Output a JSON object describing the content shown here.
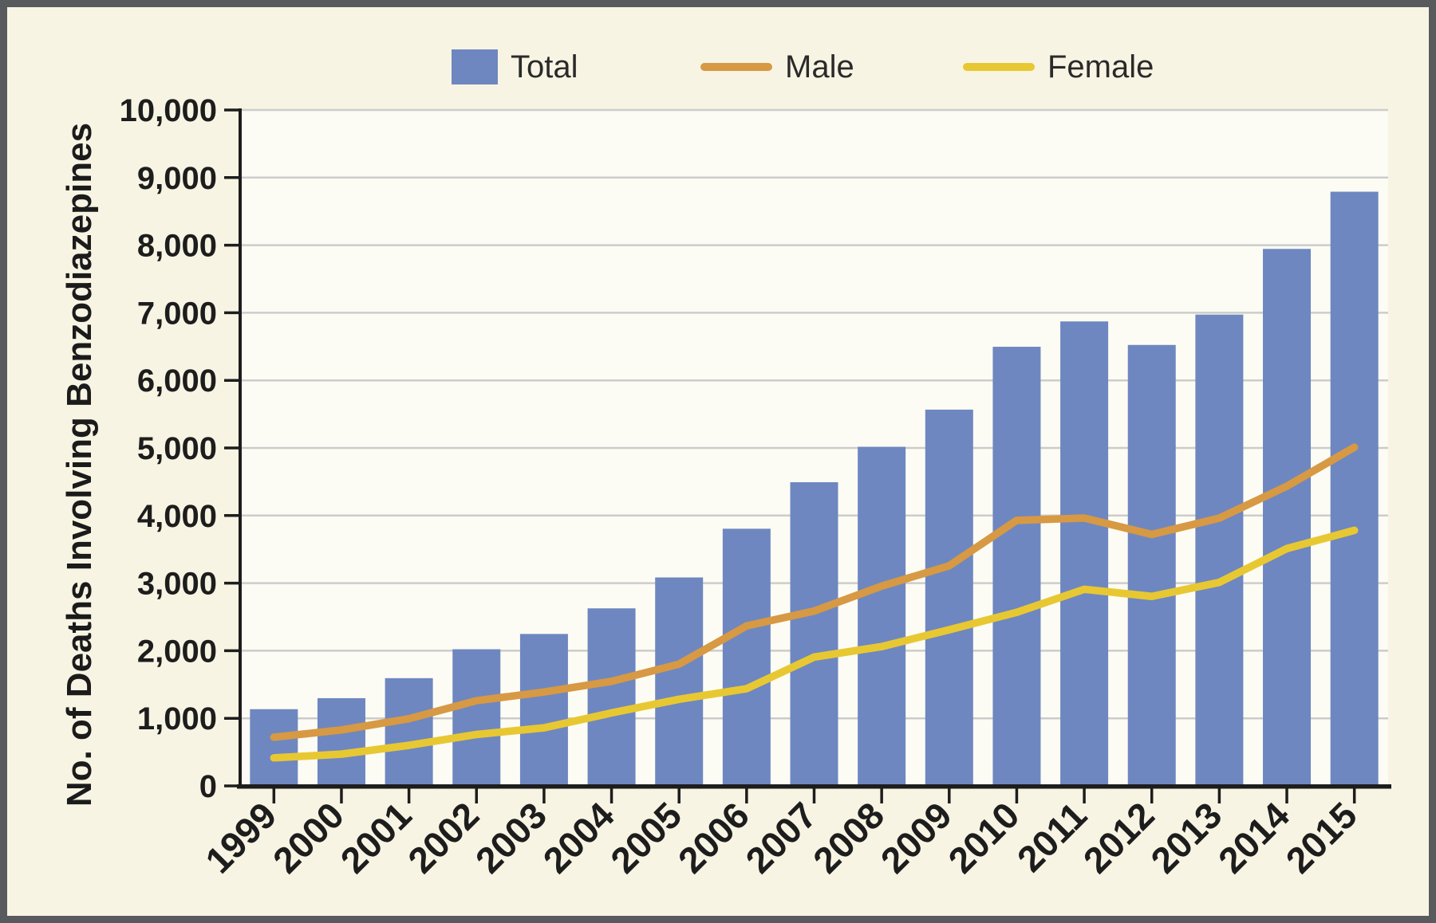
{
  "figure": {
    "background": "#f8f4e3",
    "plot_background": "#fcfcf4",
    "border_color": "#595a5e",
    "grid_color": "#cccccc",
    "axis_color": "#1d1d1d",
    "text_color": "#1d1d1d"
  },
  "legend": {
    "items": [
      {
        "label": "Total",
        "swatch": "square",
        "color": "#6e87c0"
      },
      {
        "label": "Male",
        "swatch": "line",
        "color": "#d79943"
      },
      {
        "label": "Female",
        "swatch": "line",
        "color": "#e8c832"
      }
    ]
  },
  "chart_data": {
    "type": "bar",
    "title": "",
    "xlabel": "",
    "ylabel": "No. of Deaths Involving Benzodiazepines",
    "ylim": [
      0,
      10000
    ],
    "ytick_step": 1000,
    "yticks": [
      "0",
      "1,000",
      "2,000",
      "3,000",
      "4,000",
      "5,000",
      "6,000",
      "7,000",
      "8,000",
      "9,000",
      "10,000"
    ],
    "grid": true,
    "legend_position": "top",
    "categories": [
      "1999",
      "2000",
      "2001",
      "2002",
      "2003",
      "2004",
      "2005",
      "2006",
      "2007",
      "2008",
      "2009",
      "2010",
      "2011",
      "2012",
      "2013",
      "2014",
      "2015"
    ],
    "series": [
      {
        "name": "Total",
        "type": "bar",
        "color": "#6e87c0",
        "values": [
          1135,
          1298,
          1594,
          2022,
          2248,
          2627,
          3084,
          3805,
          4493,
          5017,
          5567,
          6497,
          6872,
          6524,
          6973,
          7945,
          8791
        ]
      },
      {
        "name": "Male",
        "type": "line",
        "color": "#d79943",
        "values": [
          720,
          828,
          994,
          1261,
          1389,
          1547,
          1802,
          2367,
          2587,
          2956,
          3257,
          3929,
          3963,
          3720,
          3962,
          4434,
          5010
        ]
      },
      {
        "name": "Female",
        "type": "line",
        "color": "#e8c832",
        "values": [
          415,
          470,
          600,
          761,
          859,
          1080,
          1282,
          1438,
          1906,
          2061,
          2310,
          2568,
          2909,
          2804,
          3011,
          3511,
          3781
        ]
      }
    ]
  }
}
